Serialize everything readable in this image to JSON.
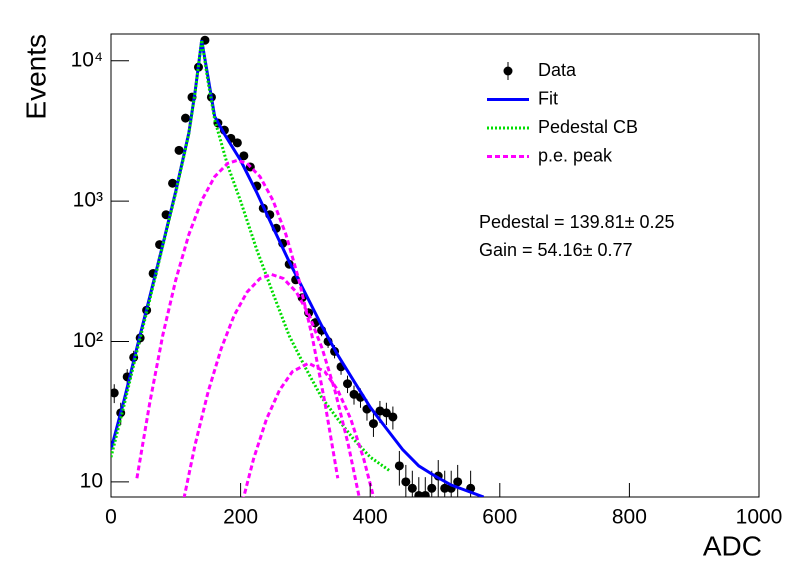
{
  "chart_data": {
    "type": "line",
    "ylabel": "Events",
    "xlabel": "ADC",
    "xlim": [
      0,
      1000
    ],
    "xticks": [
      0,
      200,
      400,
      600,
      800,
      1000
    ],
    "ylim": [
      7.8,
      15500
    ],
    "yscale": "log",
    "yticks": [
      {
        "value": 10,
        "label": "10"
      },
      {
        "value": 100,
        "label": "10²"
      },
      {
        "value": 1000,
        "label": "10³"
      },
      {
        "value": 10000,
        "label": "10⁴"
      }
    ],
    "legend": "upper right",
    "annotations": [
      "Pedestal = 139.81± 0.25",
      "Gain = 54.16± 0.77"
    ],
    "series": [
      {
        "name": "Data",
        "kind": "points",
        "color": "#000000",
        "x": [
          5,
          15,
          25,
          35,
          45,
          55,
          65,
          75,
          85,
          95,
          105,
          115,
          125,
          135,
          145,
          155,
          165,
          175,
          185,
          195,
          205,
          215,
          225,
          235,
          245,
          255,
          265,
          275,
          285,
          295,
          305,
          315,
          325,
          335,
          345,
          355,
          365,
          375,
          385,
          395,
          405,
          415,
          425,
          435,
          445,
          455,
          465,
          475,
          485,
          495,
          505,
          515,
          525,
          535,
          555
        ],
        "values": [
          43,
          31,
          56,
          77,
          106,
          167,
          305,
          490,
          800,
          1340,
          2300,
          3900,
          5500,
          9000,
          14000,
          5500,
          3600,
          3200,
          2800,
          2600,
          2100,
          1750,
          1280,
          890,
          800,
          640,
          500,
          355,
          275,
          205,
          160,
          136,
          120,
          100,
          85,
          66,
          50,
          42,
          40,
          33,
          26,
          32,
          31,
          29,
          13,
          10,
          9,
          8,
          8,
          9,
          11,
          9,
          9,
          10,
          9
        ],
        "errors": [
          6.6,
          5.6,
          7.5,
          8.8,
          10.3,
          12.9,
          17.5,
          22.1,
          28.3,
          36.6,
          48,
          62.4,
          74.2,
          94.9,
          118.3,
          74.2,
          60,
          56.6,
          52.9,
          51,
          45.8,
          41.8,
          35.8,
          29.8,
          28.3,
          25.3,
          22.4,
          18.8,
          16.6,
          14.3,
          12.6,
          11.7,
          11,
          10,
          9.2,
          8.1,
          7.1,
          6.5,
          6.3,
          5.7,
          5.1,
          5.7,
          5.6,
          5.4,
          3.6,
          3.2,
          3,
          2.8,
          2.8,
          3,
          3.3,
          3,
          3,
          3.2,
          3
        ]
      },
      {
        "name": "Fit",
        "kind": "line",
        "dash": "solid",
        "color": "#0000ff",
        "x": [
          0,
          20,
          40,
          60,
          80,
          100,
          120,
          130,
          140,
          150,
          160,
          175,
          200,
          225,
          250,
          275,
          300,
          325,
          350,
          375,
          400,
          425,
          450,
          475,
          500,
          525,
          550,
          575
        ],
        "values": [
          17,
          38,
          90,
          210,
          490,
          1180,
          3050,
          6100,
          14000,
          7500,
          4000,
          3000,
          1950,
          1150,
          650,
          370,
          220,
          130,
          80,
          52,
          34,
          24,
          17,
          13,
          11,
          9.5,
          8.6,
          7.8
        ]
      },
      {
        "name": "Pedestal CB",
        "kind": "line",
        "dash": "dotted",
        "color": "#00dd00",
        "x": [
          0,
          20,
          40,
          60,
          80,
          100,
          120,
          130,
          140,
          150,
          160,
          180,
          200,
          225,
          250,
          275,
          300,
          325,
          350,
          375,
          400,
          430
        ],
        "values": [
          15,
          35,
          85,
          200,
          480,
          1150,
          3000,
          6000,
          14000,
          7000,
          3800,
          1800,
          1000,
          450,
          220,
          110,
          65,
          40,
          28,
          20,
          15,
          12
        ]
      },
      {
        "name": "p.e. peak",
        "kind": "line",
        "dash": "dashed",
        "color": "#ff00ff",
        "x": [
          40,
          60,
          80,
          100,
          120,
          140,
          160,
          180,
          195,
          210,
          230,
          250,
          270,
          290,
          310,
          330,
          350,
          null,
          110,
          130,
          150,
          170,
          190,
          210,
          230,
          248,
          266,
          286,
          306,
          326,
          346,
          366,
          386,
          null,
          200,
          220,
          240,
          260,
          280,
          305,
          330,
          350,
          370,
          390,
          410
        ],
        "values": [
          10.6,
          37,
          111,
          275,
          576,
          1011,
          1495,
          1857,
          1950,
          1857,
          1495,
          1011,
          576,
          275,
          111,
          37,
          10.6,
          null,
          6.7,
          18.5,
          44,
          89,
          153,
          225,
          281,
          300,
          281,
          225,
          153,
          89,
          44,
          18.5,
          6.7,
          null,
          6.4,
          14.6,
          28,
          45,
          61,
          70,
          61,
          45,
          28,
          14.6,
          6.4
        ]
      }
    ]
  }
}
